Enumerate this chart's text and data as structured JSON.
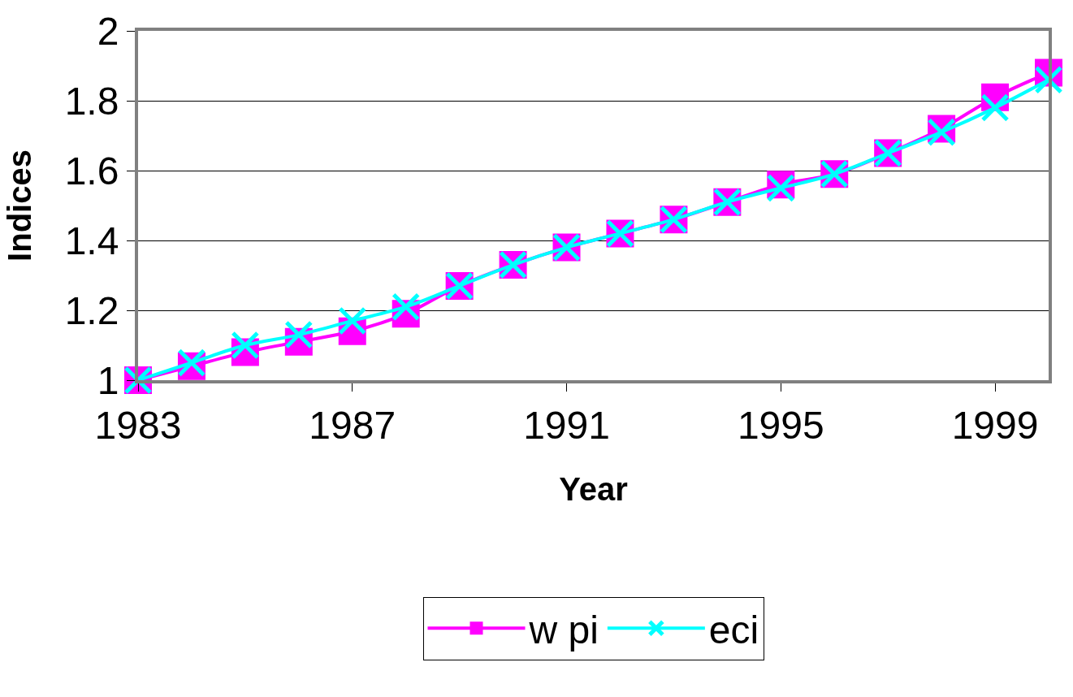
{
  "chart_data": {
    "type": "line",
    "xlabel": "Year",
    "ylabel": "Indices",
    "x": [
      1983,
      1984,
      1985,
      1986,
      1987,
      1988,
      1989,
      1990,
      1991,
      1992,
      1993,
      1994,
      1995,
      1996,
      1997,
      1998,
      1999,
      2000
    ],
    "series": [
      {
        "name": "w pi",
        "color": "#ff00ff",
        "marker": "square",
        "values": [
          1.0,
          1.04,
          1.08,
          1.11,
          1.14,
          1.19,
          1.27,
          1.33,
          1.38,
          1.42,
          1.46,
          1.51,
          1.56,
          1.59,
          1.65,
          1.72,
          1.81,
          1.88
        ]
      },
      {
        "name": "eci",
        "color": "#00ffff",
        "marker": "cross",
        "values": [
          1.0,
          1.05,
          1.1,
          1.13,
          1.17,
          1.21,
          1.27,
          1.33,
          1.38,
          1.42,
          1.46,
          1.51,
          1.55,
          1.59,
          1.65,
          1.71,
          1.78,
          1.86
        ]
      }
    ],
    "xlim": [
      1983,
      2000
    ],
    "xticks": [
      1983,
      1987,
      1991,
      1995,
      1999
    ],
    "ylim": [
      1,
      2
    ],
    "yticks": [
      1,
      1.2,
      1.4,
      1.6,
      1.8,
      2
    ],
    "grid": "y",
    "legend": "bottom",
    "line_style": "solid"
  }
}
